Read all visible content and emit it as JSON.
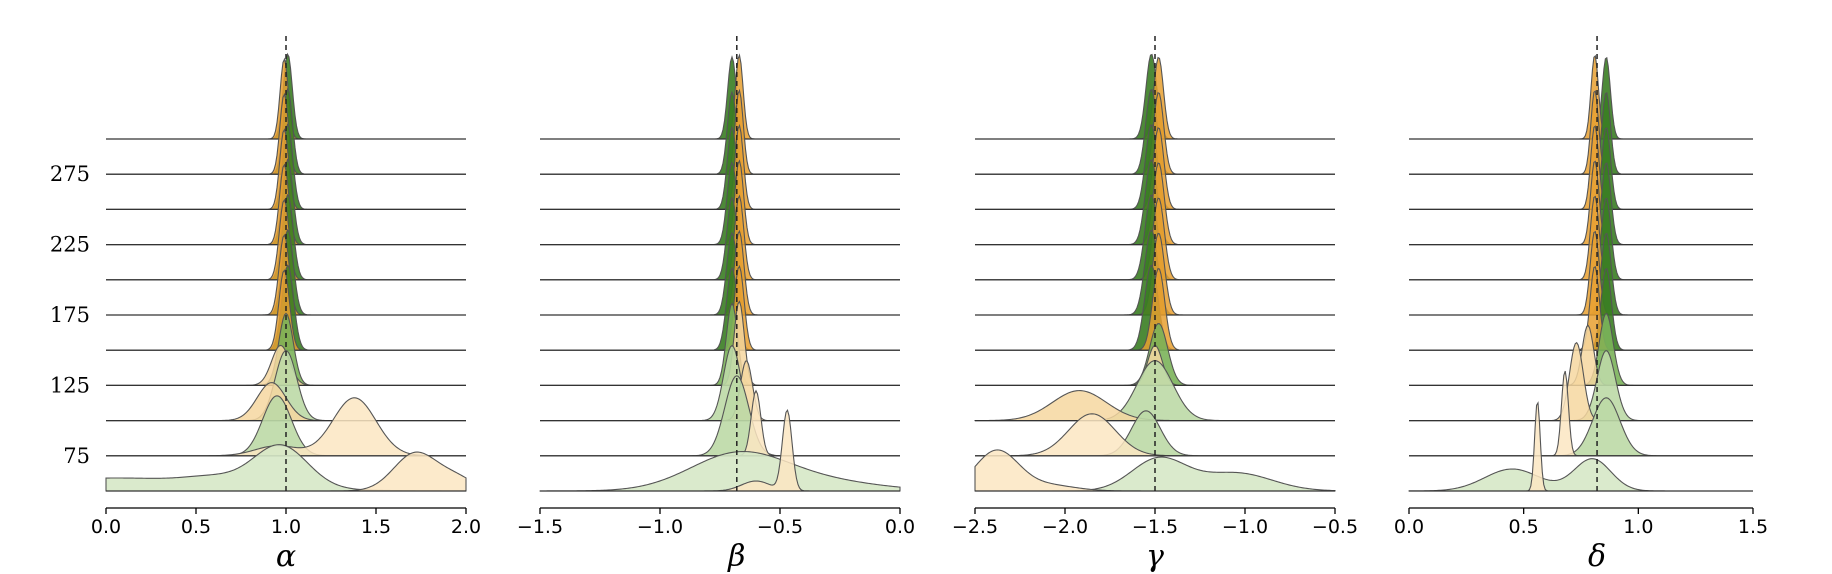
{
  "chart_data": {
    "type": "ridgeline",
    "y_ticks": [
      "275",
      "225",
      "175",
      "125",
      "75"
    ],
    "y_tick_values": [
      275,
      225,
      175,
      125,
      75
    ],
    "rows": [
      300,
      275,
      250,
      225,
      200,
      175,
      150,
      125,
      100,
      75,
      50
    ],
    "colors": {
      "green_dark": "#3a7d22",
      "green_mid": "#7bb25a",
      "green_light": "#d6e8c6",
      "orange_dark": "#e8a030",
      "orange_light": "#fbe6c2",
      "line": "#555555",
      "baseline": "#333333",
      "truth_line": "#222222"
    },
    "panels": [
      {
        "xlabel": "α",
        "xlim": [
          0,
          2
        ],
        "ticks": [
          0,
          0.5,
          1,
          1.5,
          2
        ],
        "tick_labels": [
          "0.0",
          "0.5",
          "1.0",
          "1.5",
          "2.0"
        ],
        "truth": 1.0
      },
      {
        "xlabel": "β",
        "xlim": [
          -1.5,
          0
        ],
        "ticks": [
          -1.5,
          -1,
          -0.5,
          0
        ],
        "tick_labels": [
          "−1.5",
          "−1.0",
          "−0.5",
          "0.0"
        ],
        "truth": -0.68
      },
      {
        "xlabel": "γ",
        "xlim": [
          -2.5,
          -0.5
        ],
        "ticks": [
          -2.5,
          -2,
          -1.5,
          -1,
          -0.5
        ],
        "tick_labels": [
          "−2.5",
          "−2.0",
          "−1.5",
          "−1.0",
          "−0.5"
        ],
        "truth": -1.5
      },
      {
        "xlabel": "δ",
        "xlim": [
          0,
          1.5
        ],
        "ticks": [
          0,
          0.5,
          1,
          1.5
        ],
        "tick_labels": [
          "0.0",
          "0.5",
          "1.0",
          "1.5"
        ],
        "truth": 0.82
      }
    ]
  }
}
